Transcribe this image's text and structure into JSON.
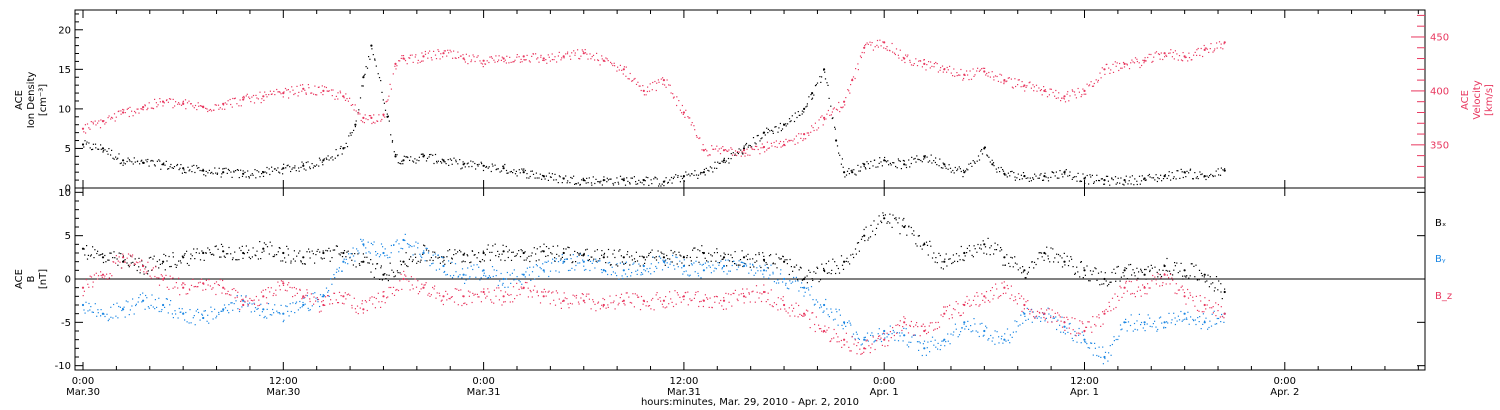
{
  "chart_data": [
    {
      "type": "scatter",
      "panel": "top",
      "ylabel_left": [
        "ACE",
        "Ion Density",
        "[cm⁻³]"
      ],
      "ylabel_right": [
        "ACE",
        "Velocity",
        "[km/s]"
      ],
      "ylim_left": [
        0,
        22.5
      ],
      "yticks_left": [
        0,
        5,
        10,
        15,
        20
      ],
      "ylim_right": [
        310,
        475
      ],
      "yticks_right": [
        350,
        400,
        450
      ],
      "colors": {
        "density": "#000000",
        "velocity": "#e8375f"
      },
      "series": [
        {
          "axis": "left",
          "x": [
            0.0,
            0.05,
            0.1,
            0.15,
            0.2,
            0.25,
            0.3,
            0.35,
            0.4,
            0.45,
            0.5,
            0.55,
            0.6,
            0.65,
            0.68,
            0.7,
            0.72,
            0.76,
            0.78,
            0.8,
            0.85,
            0.9,
            0.95,
            1.0,
            1.05,
            1.1,
            1.15,
            1.2,
            1.25,
            1.3,
            1.35,
            1.4,
            1.45,
            1.5,
            1.55,
            1.6,
            1.65,
            1.7,
            1.75,
            1.8,
            1.82,
            1.85,
            1.88,
            1.9,
            1.92,
            1.95,
            2.0,
            2.05,
            2.1,
            2.15,
            2.2,
            2.25,
            2.27,
            2.3,
            2.35,
            2.4,
            2.45,
            2.5,
            2.55,
            2.6,
            2.65,
            2.7,
            2.75,
            2.8,
            2.85
          ],
          "y": [
            5.5,
            5.0,
            3.5,
            3.2,
            3.0,
            2.5,
            2.2,
            2.0,
            1.8,
            2.0,
            2.5,
            2.8,
            3.5,
            5.0,
            8.0,
            14.0,
            18.0,
            9.0,
            4.0,
            3.5,
            4.0,
            3.5,
            3.0,
            2.8,
            2.5,
            2.0,
            1.5,
            1.2,
            1.0,
            1.0,
            1.0,
            1.0,
            0.8,
            1.5,
            2.0,
            3.5,
            5.0,
            7.0,
            8.0,
            10.0,
            12.0,
            15.0,
            6.0,
            2.0,
            2.0,
            3.0,
            3.5,
            3.0,
            4.0,
            3.0,
            2.0,
            5.0,
            3.0,
            1.8,
            1.5,
            1.5,
            2.0,
            1.2,
            1.0,
            1.0,
            1.2,
            1.5,
            2.0,
            1.5,
            2.2
          ]
        },
        {
          "axis": "right",
          "x": [
            0.0,
            0.05,
            0.1,
            0.15,
            0.2,
            0.25,
            0.3,
            0.35,
            0.4,
            0.45,
            0.5,
            0.55,
            0.6,
            0.65,
            0.7,
            0.72,
            0.75,
            0.78,
            0.8,
            0.85,
            0.9,
            0.95,
            1.0,
            1.05,
            1.1,
            1.15,
            1.2,
            1.25,
            1.3,
            1.35,
            1.4,
            1.45,
            1.5,
            1.55,
            1.6,
            1.65,
            1.7,
            1.75,
            1.8,
            1.85,
            1.9,
            1.92,
            1.95,
            2.0,
            2.05,
            2.1,
            2.15,
            2.2,
            2.25,
            2.3,
            2.35,
            2.4,
            2.45,
            2.5,
            2.55,
            2.6,
            2.65,
            2.7,
            2.75,
            2.8,
            2.85
          ],
          "y": [
            365,
            372,
            380,
            385,
            390,
            388,
            385,
            388,
            392,
            395,
            398,
            402,
            400,
            395,
            375,
            375,
            378,
            425,
            430,
            432,
            435,
            430,
            428,
            430,
            432,
            430,
            432,
            435,
            428,
            420,
            400,
            410,
            380,
            345,
            345,
            345,
            348,
            350,
            360,
            375,
            390,
            410,
            440,
            445,
            430,
            425,
            420,
            415,
            418,
            410,
            405,
            400,
            395,
            400,
            420,
            425,
            428,
            435,
            432,
            438,
            445
          ]
        }
      ]
    },
    {
      "type": "scatter",
      "panel": "bottom",
      "ylabel": [
        "ACE",
        "B",
        "[nT]"
      ],
      "ylim": [
        -10.5,
        10.5
      ],
      "yticks": [
        -10,
        -5,
        0,
        5,
        10
      ],
      "zero_line": true,
      "legend": {
        "placement": "right",
        "entries": [
          "Bₓ",
          "Bᵧ",
          "B_z"
        ]
      },
      "series": [
        {
          "name": "Bₓ",
          "color": "#000000",
          "x": [
            0.0,
            0.05,
            0.1,
            0.15,
            0.2,
            0.25,
            0.3,
            0.35,
            0.4,
            0.45,
            0.5,
            0.55,
            0.6,
            0.65,
            0.7,
            0.75,
            0.8,
            0.85,
            0.9,
            0.95,
            1.0,
            1.05,
            1.1,
            1.15,
            1.2,
            1.25,
            1.3,
            1.35,
            1.4,
            1.45,
            1.5,
            1.55,
            1.6,
            1.65,
            1.7,
            1.75,
            1.8,
            1.85,
            1.9,
            1.95,
            2.0,
            2.05,
            2.1,
            2.15,
            2.2,
            2.25,
            2.3,
            2.35,
            2.4,
            2.45,
            2.5,
            2.55,
            2.6,
            2.65,
            2.7,
            2.75,
            2.8,
            2.85
          ],
          "y": [
            3.5,
            2.5,
            2.0,
            1.5,
            2.0,
            2.5,
            3.0,
            3.2,
            3.0,
            3.5,
            3.0,
            2.5,
            3.0,
            3.0,
            2.0,
            0.5,
            2.0,
            3.0,
            2.5,
            2.8,
            3.0,
            3.2,
            3.0,
            3.2,
            3.0,
            2.8,
            2.5,
            2.5,
            2.5,
            2.5,
            2.5,
            3.0,
            2.5,
            2.5,
            2.2,
            2.0,
            0.0,
            1.0,
            2.0,
            5.0,
            7.0,
            6.0,
            4.0,
            2.0,
            3.0,
            4.0,
            2.5,
            1.0,
            3.0,
            2.0,
            1.0,
            0.0,
            1.0,
            0.5,
            1.5,
            1.0,
            0.5,
            -1.5
          ]
        },
        {
          "name": "Bᵧ",
          "color": "#1a86e3",
          "x": [
            0.0,
            0.05,
            0.1,
            0.15,
            0.2,
            0.25,
            0.3,
            0.35,
            0.4,
            0.45,
            0.5,
            0.55,
            0.6,
            0.65,
            0.7,
            0.75,
            0.8,
            0.85,
            0.9,
            0.95,
            1.0,
            1.05,
            1.1,
            1.15,
            1.2,
            1.25,
            1.3,
            1.35,
            1.4,
            1.45,
            1.5,
            1.55,
            1.6,
            1.65,
            1.7,
            1.75,
            1.8,
            1.85,
            1.9,
            1.95,
            2.0,
            2.05,
            2.1,
            2.15,
            2.2,
            2.25,
            2.3,
            2.35,
            2.4,
            2.45,
            2.5,
            2.55,
            2.6,
            2.65,
            2.7,
            2.75,
            2.8,
            2.85
          ],
          "y": [
            -3.0,
            -4.0,
            -3.5,
            -2.5,
            -3.0,
            -4.0,
            -4.5,
            -3.5,
            -2.5,
            -3.5,
            -4.0,
            -3.0,
            -2.0,
            2.0,
            4.0,
            3.0,
            4.5,
            3.0,
            1.5,
            0.5,
            1.0,
            0.0,
            0.5,
            1.0,
            2.0,
            2.0,
            1.0,
            1.0,
            1.5,
            2.0,
            1.5,
            1.0,
            1.5,
            1.5,
            1.0,
            0.0,
            -1.0,
            -3.0,
            -5.0,
            -7.0,
            -6.0,
            -6.5,
            -8.0,
            -7.0,
            -5.0,
            -6.0,
            -7.0,
            -4.0,
            -4.0,
            -5.5,
            -7.0,
            -9.0,
            -5.0,
            -5.0,
            -5.0,
            -4.0,
            -5.0,
            -4.0
          ]
        },
        {
          "name": "B_z",
          "color": "#e8375f",
          "x": [
            0.0,
            0.05,
            0.1,
            0.15,
            0.2,
            0.25,
            0.3,
            0.35,
            0.4,
            0.45,
            0.5,
            0.55,
            0.6,
            0.65,
            0.7,
            0.75,
            0.8,
            0.85,
            0.9,
            0.95,
            1.0,
            1.05,
            1.1,
            1.15,
            1.2,
            1.25,
            1.3,
            1.35,
            1.4,
            1.45,
            1.5,
            1.55,
            1.6,
            1.65,
            1.7,
            1.75,
            1.8,
            1.85,
            1.9,
            1.95,
            2.0,
            2.05,
            2.1,
            2.15,
            2.2,
            2.25,
            2.3,
            2.35,
            2.4,
            2.45,
            2.5,
            2.55,
            2.6,
            2.65,
            2.7,
            2.75,
            2.8,
            2.85
          ],
          "y": [
            -1.0,
            0.5,
            2.5,
            1.5,
            0.0,
            -1.0,
            -0.5,
            -1.0,
            -3.0,
            -2.0,
            -0.5,
            -2.0,
            -3.0,
            -2.0,
            -3.5,
            -2.0,
            0.0,
            -1.0,
            -2.0,
            -2.0,
            -1.5,
            -2.0,
            -1.0,
            -2.0,
            -2.5,
            -2.5,
            -3.0,
            -2.5,
            -2.5,
            -2.5,
            -2.0,
            -2.5,
            -2.5,
            -2.0,
            -1.5,
            -3.0,
            -4.0,
            -6.0,
            -7.0,
            -8.0,
            -7.0,
            -5.0,
            -6.0,
            -4.0,
            -3.0,
            -2.0,
            -1.0,
            -3.0,
            -4.0,
            -5.0,
            -6.0,
            -4.0,
            -1.0,
            -1.0,
            0.5,
            -2.0,
            -3.0,
            -4.0
          ]
        }
      ]
    }
  ],
  "x_axis": {
    "xlim": [
      -0.02,
      3.35
    ],
    "ticks": [
      {
        "x": 0.0,
        "time": "0:00",
        "date": "Mar.30"
      },
      {
        "x": 0.5,
        "time": "12:00",
        "date": "Mar.30"
      },
      {
        "x": 1.0,
        "time": "0:00",
        "date": "Mar.31"
      },
      {
        "x": 1.5,
        "time": "12:00",
        "date": "Mar.31"
      },
      {
        "x": 2.0,
        "time": "0:00",
        "date": "Apr. 1"
      },
      {
        "x": 2.5,
        "time": "12:00",
        "date": "Apr. 1"
      },
      {
        "x": 3.0,
        "time": "0:00",
        "date": "Apr. 2"
      }
    ],
    "xlabel": "hours:minutes, Mar. 29, 2010 - Apr.  2, 2010"
  }
}
